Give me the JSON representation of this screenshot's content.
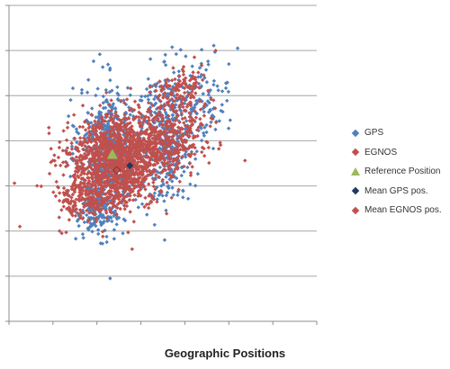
{
  "chart_data": {
    "type": "scatter",
    "title": "",
    "caption": "Geographic Positions",
    "xlabel": "",
    "ylabel": "",
    "grid": "horizontal",
    "legend_position": "right",
    "xlim": [
      0,
      7
    ],
    "ylim": [
      0,
      7
    ],
    "series": [
      {
        "name": "GPS",
        "color": "#4f81bd",
        "marker": "diamond",
        "clusters": [
          {
            "cx": 2.3,
            "cy": 3.8,
            "sx": 0.35,
            "sy": 0.7,
            "n": 550
          },
          {
            "cx": 3.6,
            "cy": 4.1,
            "sx": 0.3,
            "sy": 0.7,
            "n": 380
          },
          {
            "cx": 2.0,
            "cy": 2.4,
            "sx": 0.22,
            "sy": 0.25,
            "n": 160
          },
          {
            "cx": 4.3,
            "cy": 4.9,
            "sx": 0.35,
            "sy": 0.5,
            "n": 120
          }
        ],
        "outliers": [
          [
            2.3,
            0.95
          ],
          [
            5.2,
            6.05
          ],
          [
            5.0,
            5.7
          ],
          [
            1.75,
            4.0
          ],
          [
            4.5,
            5.3
          ]
        ]
      },
      {
        "name": "EGNOS",
        "color": "#c0504d",
        "marker": "diamond",
        "clusters": [
          {
            "cx": 2.4,
            "cy": 3.5,
            "sx": 0.55,
            "sy": 0.5,
            "n": 1250
          },
          {
            "cx": 3.5,
            "cy": 4.1,
            "sx": 0.5,
            "sy": 0.4,
            "n": 450
          },
          {
            "cx": 3.9,
            "cy": 5.1,
            "sx": 0.25,
            "sy": 0.25,
            "n": 120
          },
          {
            "cx": 1.7,
            "cy": 2.7,
            "sx": 0.3,
            "sy": 0.2,
            "n": 160
          }
        ],
        "outliers": [
          [
            1.2,
            1.95
          ],
          [
            1.3,
            1.97
          ],
          [
            4.7,
            6.0
          ],
          [
            2.8,
            1.6
          ],
          [
            1.15,
            2.0
          ]
        ]
      },
      {
        "name": "Reference Position",
        "color": "#9bbb59",
        "marker": "triangle",
        "points": [
          [
            2.35,
            3.7
          ]
        ]
      },
      {
        "name": "Mean GPS pos.",
        "color": "#1f3864",
        "marker": "diamond",
        "points": [
          [
            2.75,
            3.45
          ]
        ]
      },
      {
        "name": "Mean EGNOS pos.",
        "color": "#c0504d",
        "marker": "diamond",
        "points": [
          [
            2.45,
            3.35
          ]
        ]
      }
    ]
  }
}
